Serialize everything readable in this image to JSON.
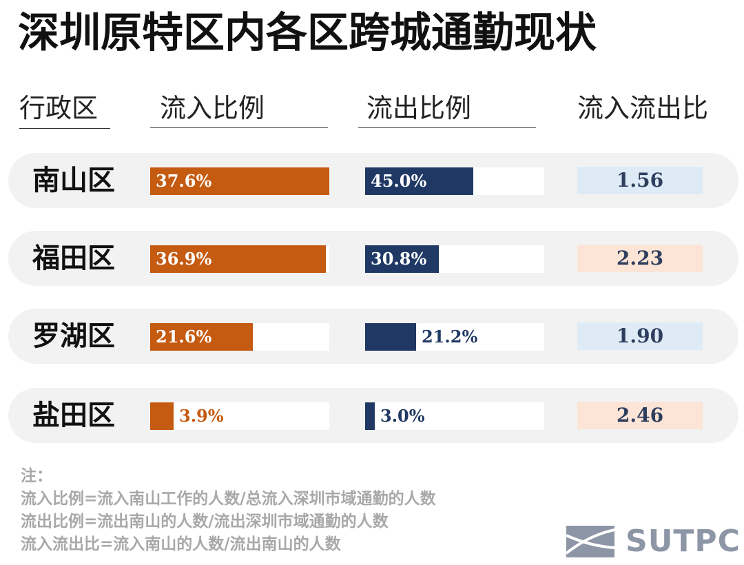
{
  "title": "深圳原特区内各区跨城通勤现状",
  "headers": {
    "district": "行政区",
    "inflow": "流入比例",
    "outflow": "流出比例",
    "ratio": "流入流出比"
  },
  "colors": {
    "inflow_bar": "#c55a11",
    "outflow_bar": "#1f3864",
    "ratio_blue": "#deebf7",
    "ratio_peach": "#fce4d6"
  },
  "chart_data": {
    "type": "bar",
    "categories": [
      "南山区",
      "福田区",
      "罗湖区",
      "盐田区"
    ],
    "series": [
      {
        "name": "流入比例",
        "values": [
          37.6,
          36.9,
          21.6,
          3.9
        ],
        "labels": [
          "37.6%",
          "36.9%",
          "21.6%",
          "3.9%"
        ]
      },
      {
        "name": "流出比例",
        "values": [
          45.0,
          30.8,
          21.2,
          3.0
        ],
        "labels": [
          "45.0%",
          "30.8%",
          "21.2%",
          "3.0%"
        ]
      },
      {
        "name": "流入流出比",
        "values": [
          1.56,
          2.23,
          1.9,
          2.46
        ],
        "labels": [
          "1.56",
          "2.23",
          "1.90",
          "2.46"
        ]
      }
    ],
    "inflow_scale_max": 37.6,
    "outflow_scale_max": 45.0
  },
  "notes": [
    "注：",
    "流入比例=流入南山工作的人数/总流入深圳市域通勤的人数",
    "流出比例=流出南山的人数/流出深圳市域通勤的人数",
    "流入流出比=流入南山的人数/流出南山的人数"
  ],
  "logo": {
    "text": "SUTPC"
  }
}
